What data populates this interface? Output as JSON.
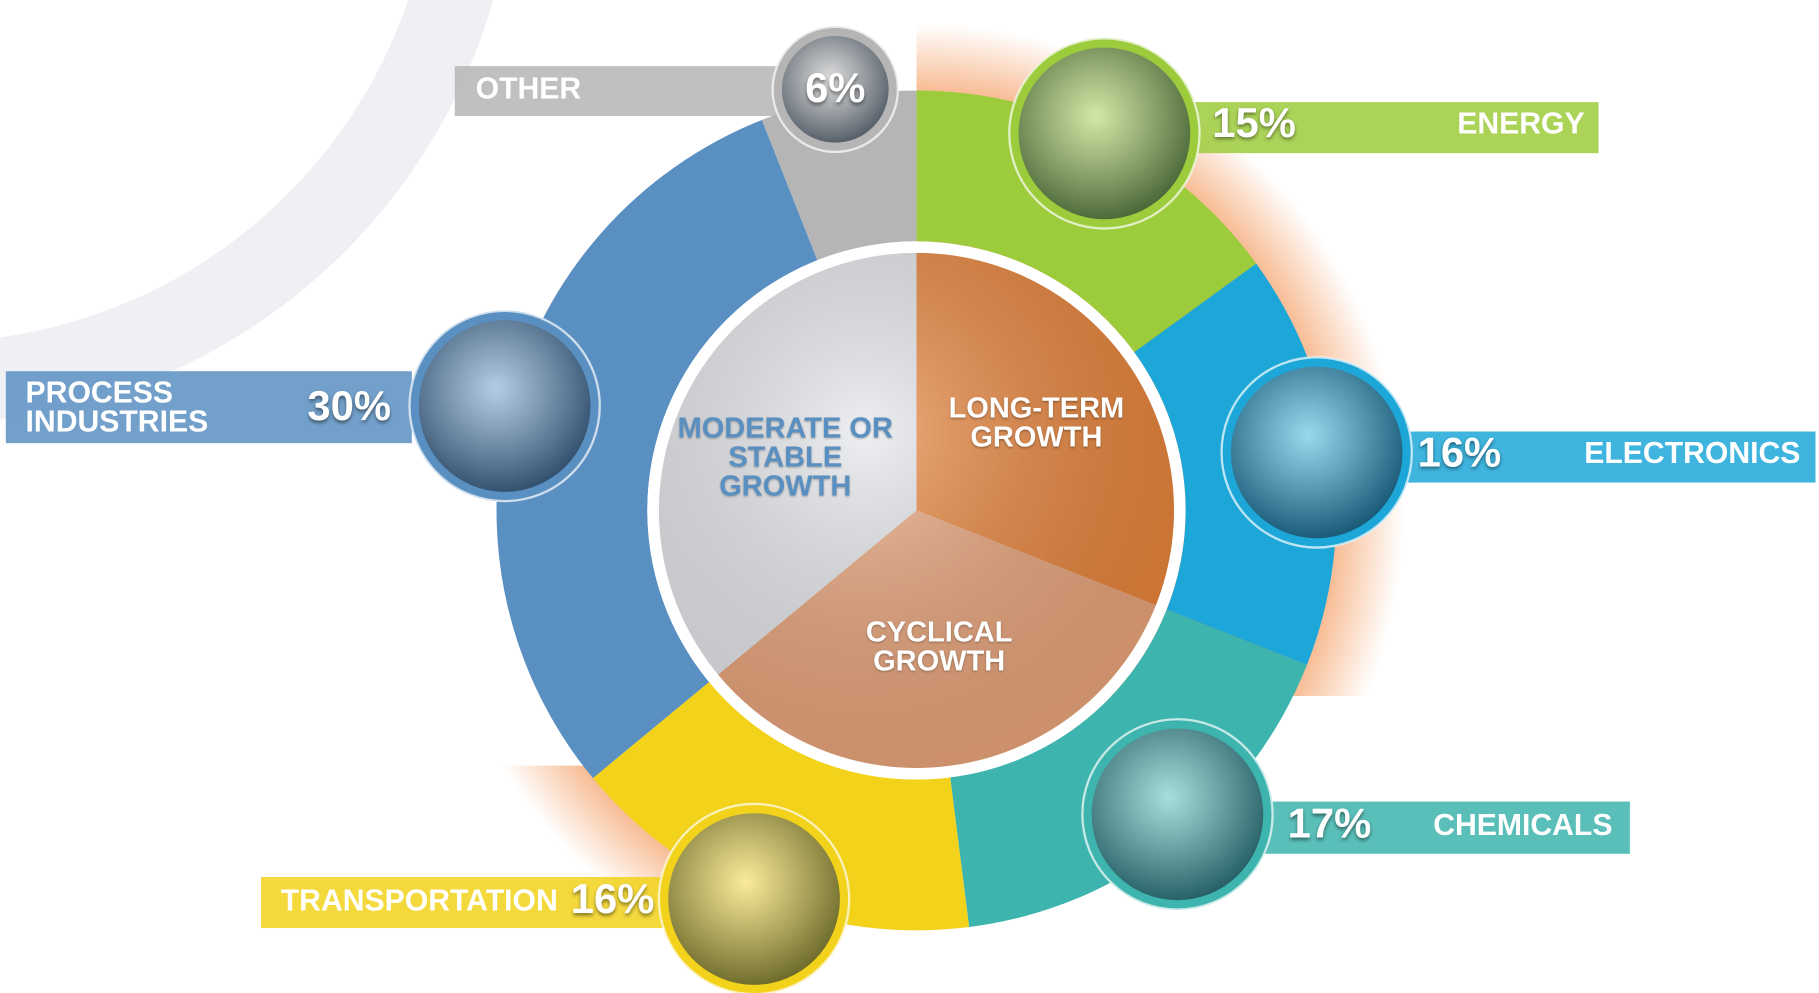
{
  "chart_data": [
    {
      "type": "donut",
      "categories": [
        "ENERGY",
        "ELECTRONICS",
        "CHEMICALS",
        "TRANSPORTATION",
        "PROCESS INDUSTRIES",
        "OTHER"
      ],
      "values": [
        15,
        16,
        17,
        16,
        30,
        6
      ],
      "value_labels": [
        "15%",
        "16%",
        "17%",
        "16%",
        "30%",
        "6%"
      ],
      "colors": [
        "#9ccb3b",
        "#1ca7d8",
        "#3db4ad",
        "#f2d21a",
        "#5a8fc2",
        "#b5b5b5"
      ]
    },
    {
      "type": "pie",
      "categories": [
        "LONG-TERM GROWTH",
        "CYCLICAL GROWTH",
        "MODERATE OR STABLE GROWTH"
      ],
      "values": [
        31,
        33,
        36
      ],
      "colors": [
        "#e8843a",
        "#e9a47a",
        "#e4e6ea"
      ]
    }
  ]
}
